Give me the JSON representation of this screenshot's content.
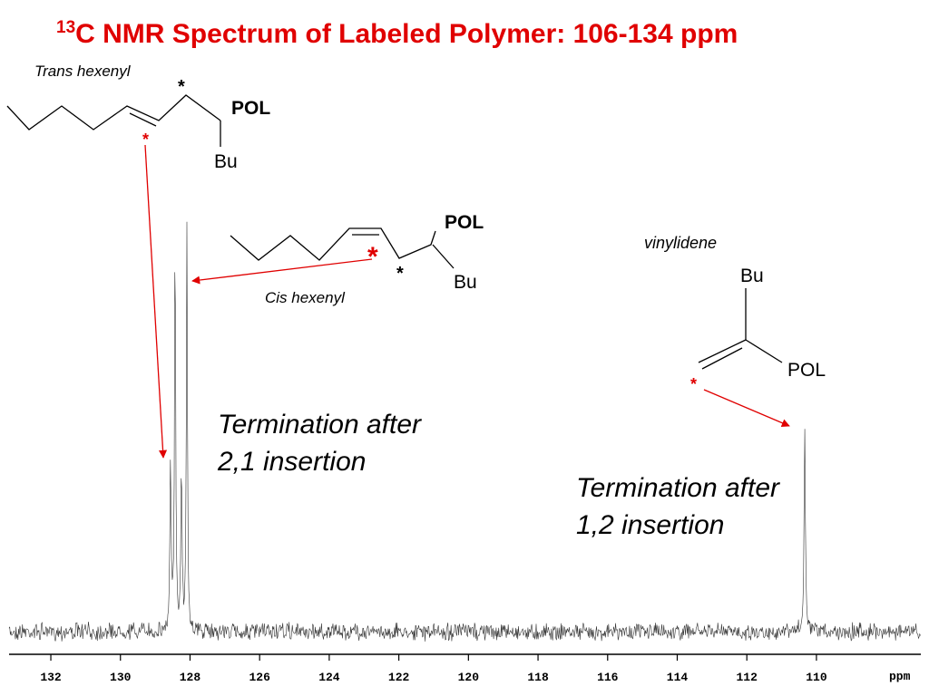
{
  "title_superscript": "13",
  "title": "C NMR Spectrum of Labeled Polymer:  106-134 ppm",
  "structures": {
    "trans": {
      "name": "Trans hexenyl",
      "star": "*",
      "label_star": "*",
      "pol": "POL",
      "bu": "Bu"
    },
    "cis": {
      "name": "Cis hexenyl",
      "star": "*",
      "label_star": "*",
      "pol": "POL",
      "bu": "Bu"
    },
    "vinylidene": {
      "name": "vinylidene",
      "label_star": "*",
      "pol": "POL",
      "bu": "Bu"
    }
  },
  "annotations": [
    {
      "lines": [
        "Termination after",
        "2,1 insertion"
      ]
    },
    {
      "lines": [
        "Termination after",
        "1,2 insertion"
      ]
    }
  ],
  "spectrum": {
    "xlim": [
      133.2,
      107
    ],
    "xticks": [
      132,
      130,
      128,
      126,
      124,
      122,
      120,
      118,
      116,
      114,
      112,
      110
    ],
    "x_label": "ppm"
  }
}
